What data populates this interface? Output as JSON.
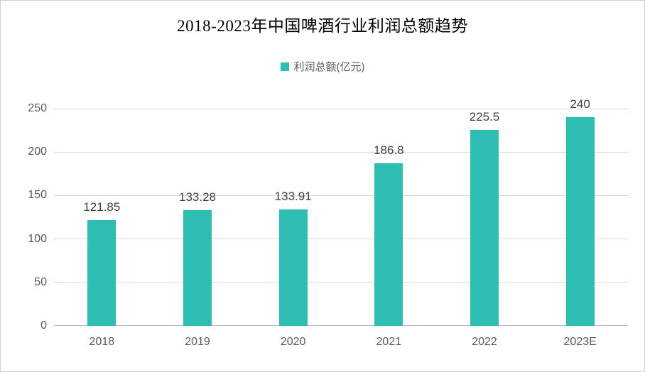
{
  "page": {
    "title": "2018-2023年中国啤酒行业利润总额趋势"
  },
  "legend": {
    "label": "利润总额(亿元)"
  },
  "colors": {
    "bar": "#2EBDB2",
    "gridline": "#D9D9D9",
    "axis_line": "#BFBFBF",
    "tick_label": "#595959",
    "value_label": "#404040",
    "title": "#000000",
    "border": "#D0D0D0"
  },
  "chart_data": {
    "type": "bar",
    "title": "2018-2023年中国啤酒行业利润总额趋势",
    "series_name": "利润总额(亿元)",
    "categories": [
      "2018",
      "2019",
      "2020",
      "2021",
      "2022",
      "2023E"
    ],
    "values": [
      121.85,
      133.28,
      133.91,
      186.8,
      225.5,
      240
    ],
    "value_labels": [
      "121.85",
      "133.28",
      "133.91",
      "186.8",
      "225.5",
      "240"
    ],
    "xlabel": "",
    "ylabel": "",
    "ylim": [
      0,
      250
    ],
    "yticks": [
      0,
      50,
      100,
      150,
      200,
      250
    ],
    "grid": true,
    "legend_position": "top-center"
  }
}
